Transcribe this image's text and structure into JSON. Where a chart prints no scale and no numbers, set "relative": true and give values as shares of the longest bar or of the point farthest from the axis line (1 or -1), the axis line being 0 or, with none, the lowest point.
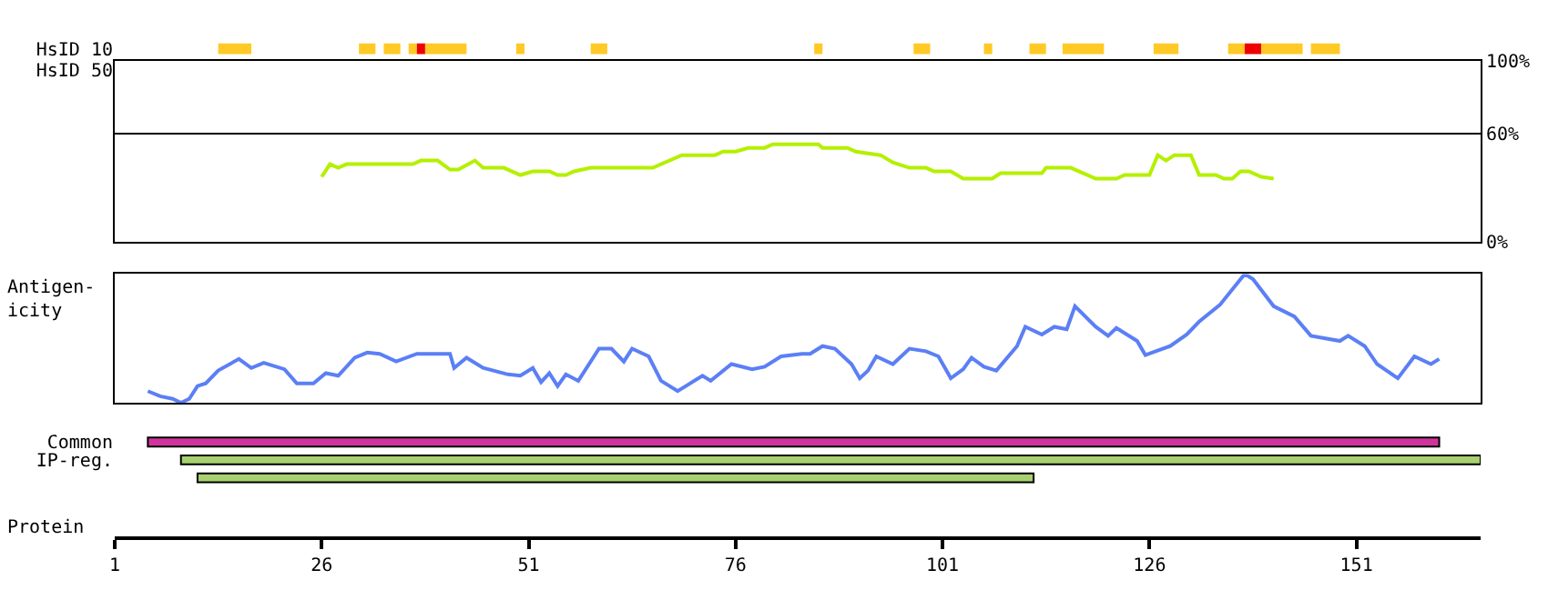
{
  "chart_data": [
    {
      "type": "bar",
      "orientation": "horizontal",
      "categories": [
        "HsID 10",
        "HsID 50"
      ],
      "xlim": [
        1,
        166
      ],
      "tick_labels": "y",
      "series": [
        {
          "color": "#ffc926",
          "base": [
            13.5,
            null
          ],
          "values": [
            4,
            null
          ]
        },
        {
          "color": "#ffc926",
          "base": [
            30.5,
            null
          ],
          "values": [
            2,
            null
          ]
        },
        {
          "color": "#ffc926",
          "base": [
            33.5,
            null
          ],
          "values": [
            2,
            null
          ]
        },
        {
          "color": "#ffc926",
          "base": [
            36.5,
            null
          ],
          "values": [
            1,
            null
          ]
        },
        {
          "color": "#ee0000",
          "base": [
            37.5,
            null
          ],
          "values": [
            1,
            null
          ]
        },
        {
          "color": "#ffc926",
          "base": [
            38.5,
            null
          ],
          "values": [
            5,
            null
          ]
        },
        {
          "color": "#ffc926",
          "base": [
            49.5,
            null
          ],
          "values": [
            1,
            null
          ]
        },
        {
          "color": "#ffc926",
          "base": [
            58.5,
            null
          ],
          "values": [
            2,
            null
          ]
        },
        {
          "color": "#ffc926",
          "base": [
            85.5,
            null
          ],
          "values": [
            1,
            null
          ]
        },
        {
          "color": "#ffc926",
          "base": [
            97.5,
            null
          ],
          "values": [
            2,
            null
          ]
        },
        {
          "color": "#ffc926",
          "base": [
            106,
            null
          ],
          "values": [
            1,
            null
          ]
        },
        {
          "color": "#ffc926",
          "base": [
            111.5,
            null
          ],
          "values": [
            2,
            null
          ]
        },
        {
          "color": "#ffc926",
          "base": [
            115.5,
            null
          ],
          "values": [
            5,
            null
          ]
        },
        {
          "color": "#ffc926",
          "base": [
            126.5,
            null
          ],
          "values": [
            3,
            null
          ]
        },
        {
          "color": "#ffc926",
          "base": [
            135.5,
            null
          ],
          "values": [
            2,
            null
          ]
        },
        {
          "color": "#ee0000",
          "base": [
            137.5,
            null
          ],
          "values": [
            2,
            null
          ]
        },
        {
          "color": "#ffc926",
          "base": [
            139.5,
            null
          ],
          "values": [
            5,
            null
          ]
        },
        {
          "color": "#ffc926",
          "base": [
            145.5,
            null
          ],
          "values": [
            3.5,
            null
          ]
        }
      ]
    },
    {
      "type": "line",
      "xlim": [
        1,
        166
      ],
      "ylim": [
        0,
        100
      ],
      "yticks": [
        {
          "value": 0,
          "label": "0%"
        },
        {
          "value": 60,
          "label": "60%"
        },
        {
          "value": 100,
          "label": "100%"
        }
      ],
      "grid": "y",
      "tick_labels": "y",
      "series": [
        {
          "color": "#b4f000",
          "x": [
            26,
            27,
            28,
            29,
            37,
            38,
            40,
            41.5,
            42.5,
            44.5,
            45.5,
            48,
            50,
            51.5,
            53.5,
            54.5,
            55.5,
            56.5,
            58.5,
            66,
            69.5,
            73.5,
            74.5,
            76,
            77.5,
            79.5,
            80.5,
            86,
            86.5,
            89.5,
            90.5,
            93.5,
            95,
            97,
            99,
            100,
            102,
            103.5,
            107,
            108,
            113,
            113.5,
            116.5,
            119.5,
            122,
            123,
            126,
            127,
            128,
            129,
            131,
            132,
            134,
            135,
            136,
            137,
            138,
            139.5,
            141
          ],
          "values": [
            36,
            43,
            41,
            43,
            43,
            45,
            45,
            40,
            40,
            45,
            41,
            41,
            37,
            39,
            39,
            37,
            37,
            39,
            41,
            41,
            48,
            48,
            50,
            50,
            52,
            52,
            54,
            54,
            52,
            52,
            50,
            48,
            44,
            41,
            41,
            39,
            39,
            35,
            35,
            38,
            38,
            41,
            41,
            35,
            35,
            37,
            37,
            48,
            45,
            48,
            48,
            37,
            37,
            35,
            35,
            39,
            39,
            36,
            35
          ]
        }
      ]
    },
    {
      "type": "line",
      "relative": true,
      "ylabel": "Antigen-\nicity",
      "xlim": [
        1,
        166
      ],
      "tick_labels": false,
      "series": [
        {
          "color": "#5b7ff5",
          "x": [
            5,
            6.5,
            8,
            9,
            10,
            11,
            12,
            13.5,
            16,
            17.5,
            19,
            21.5,
            23,
            25,
            26.5,
            28,
            30,
            31.5,
            33,
            35,
            37.5,
            41.5,
            42,
            43.5,
            45.5,
            48.5,
            50,
            51.5,
            52.5,
            53.5,
            54.5,
            55.5,
            57,
            59.5,
            61,
            62.5,
            63.5,
            65.5,
            67,
            69,
            70,
            72,
            73,
            75.5,
            78,
            79.5,
            81.5,
            84,
            85,
            86.5,
            88,
            90,
            91,
            92,
            93,
            95,
            97,
            99,
            100.5,
            102,
            103.5,
            104.5,
            106,
            107.5,
            110,
            111,
            113,
            114.5,
            116,
            117,
            119.5,
            121,
            122,
            124.5,
            125.5,
            128.5,
            130.5,
            132,
            134.5,
            137.5,
            138.5,
            141,
            143.5,
            145.5,
            149,
            150,
            152,
            153.5,
            156,
            158,
            160,
            161
          ],
          "values": [
            0.09,
            0.05,
            0.03,
            0.0,
            0.03,
            0.13,
            0.15,
            0.25,
            0.34,
            0.27,
            0.31,
            0.26,
            0.15,
            0.15,
            0.23,
            0.21,
            0.35,
            0.39,
            0.38,
            0.32,
            0.38,
            0.38,
            0.27,
            0.35,
            0.27,
            0.22,
            0.21,
            0.27,
            0.16,
            0.23,
            0.13,
            0.22,
            0.17,
            0.42,
            0.42,
            0.32,
            0.42,
            0.36,
            0.17,
            0.09,
            0.13,
            0.21,
            0.17,
            0.3,
            0.26,
            0.28,
            0.36,
            0.38,
            0.38,
            0.44,
            0.42,
            0.3,
            0.19,
            0.25,
            0.36,
            0.3,
            0.42,
            0.4,
            0.36,
            0.19,
            0.26,
            0.35,
            0.28,
            0.25,
            0.44,
            0.59,
            0.53,
            0.59,
            0.57,
            0.75,
            0.59,
            0.52,
            0.58,
            0.48,
            0.37,
            0.44,
            0.53,
            0.63,
            0.76,
            1.0,
            0.96,
            0.75,
            0.67,
            0.52,
            0.48,
            0.52,
            0.44,
            0.3,
            0.19,
            0.36,
            0.3,
            0.34
          ]
        }
      ]
    },
    {
      "type": "bar",
      "orientation": "horizontal",
      "categories": [
        "Common",
        "IP-reg.",
        null
      ],
      "base": [
        5,
        9,
        11
      ],
      "values": [
        156,
        157,
        101
      ],
      "colors": [
        "#d0349c",
        "#a8d070",
        "#a8d070"
      ],
      "xlim": [
        1,
        166
      ],
      "xticks": [
        1,
        26,
        51,
        76,
        101,
        126,
        151
      ],
      "xlabel": "Protein"
    }
  ]
}
